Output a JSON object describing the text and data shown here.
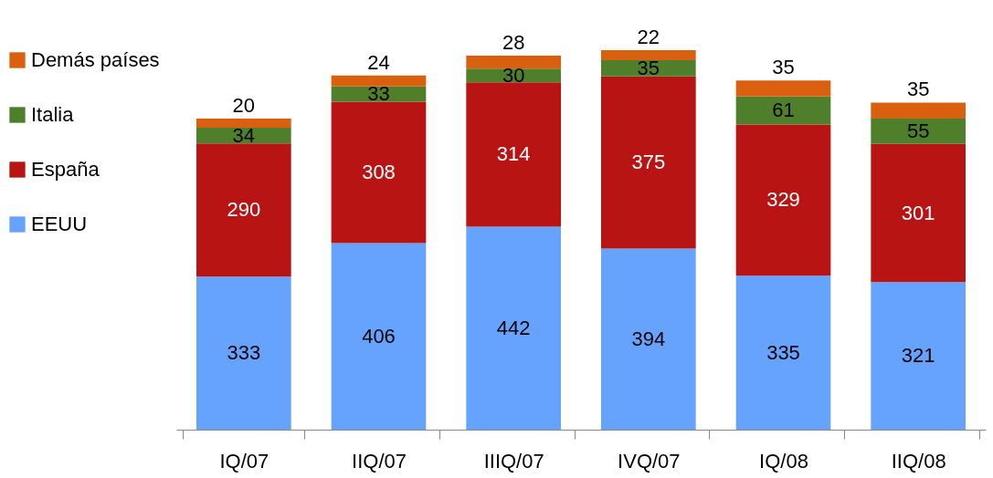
{
  "chart_data": {
    "type": "bar",
    "stacked": true,
    "data_labels": true,
    "legend": "left",
    "categories": [
      "IQ/07",
      "IIQ/07",
      "IIIQ/07",
      "IVQ/07",
      "IQ/08",
      "IIQ/08"
    ],
    "series": [
      {
        "name": "EEUU",
        "color": "#66a3ff",
        "values": [
          333,
          406,
          442,
          394,
          335,
          321
        ]
      },
      {
        "name": "España",
        "color": "#b81414",
        "values": [
          290,
          308,
          314,
          375,
          329,
          301
        ]
      },
      {
        "name": "Italia",
        "color": "#4f7f2a",
        "values": [
          34,
          33,
          30,
          35,
          61,
          55
        ]
      },
      {
        "name": "Demás países",
        "color": "#d9600f",
        "values": [
          20,
          24,
          28,
          22,
          35,
          35
        ]
      }
    ]
  }
}
